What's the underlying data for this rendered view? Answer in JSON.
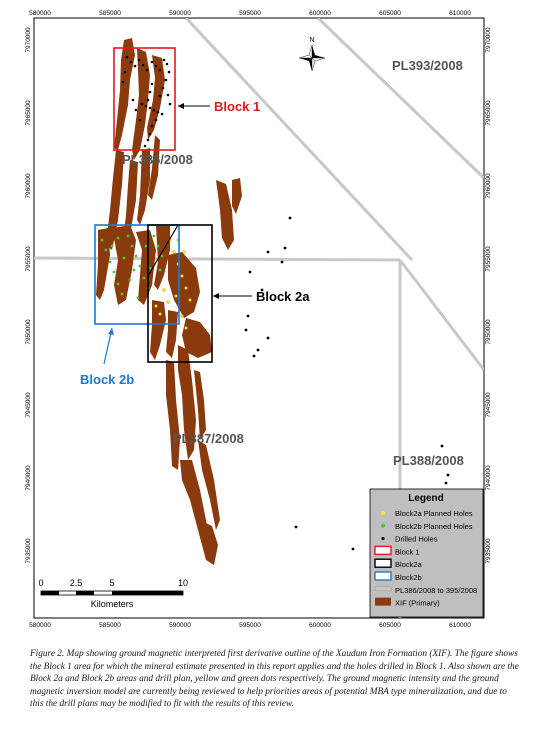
{
  "map": {
    "x_ticks": [
      "580000",
      "585000",
      "590000",
      "595000",
      "600000",
      "605000",
      "610000"
    ],
    "y_ticks": [
      "7970000",
      "7965000",
      "7960000",
      "7955000",
      "7950000",
      "7945000",
      "7940000",
      "7935000"
    ],
    "north_label": "N",
    "licence_labels": [
      "PL393/2008",
      "PL386/2008",
      "PL387/2008",
      "PL388/2008"
    ],
    "block_labels": {
      "block1": "Block 1",
      "block2a": "Block 2a",
      "block2b": "Block 2b"
    },
    "scale_bar": {
      "ticks": [
        "0",
        "2.5",
        "5",
        "10"
      ],
      "unit": "Kilometers"
    },
    "legend": {
      "title": "Legend",
      "items": [
        {
          "label": "Block2a Planned Holes",
          "symbol": "yellow-dot-icon"
        },
        {
          "label": "Block2b Planned Holes",
          "symbol": "green-dot-icon"
        },
        {
          "label": "Drilled Holes",
          "symbol": "black-dot-icon"
        },
        {
          "label": "Block 1",
          "symbol": "red-outline-box-icon"
        },
        {
          "label": "Block2a",
          "symbol": "black-outline-box-icon"
        },
        {
          "label": "Block2b",
          "symbol": "blue-outline-box-icon"
        },
        {
          "label": "PL386/2008 to 395/2008",
          "symbol": "grey-line-icon"
        },
        {
          "label": "XIF (Primary)",
          "symbol": "brown-fill-icon"
        }
      ]
    },
    "colors": {
      "xif": "#8b3a0e",
      "block1": "#e31a1c",
      "block2a": "#000000",
      "block2b": "#1f78d4",
      "licence_lines": "#c8c8c8",
      "planned_2a": "#f5e23a",
      "planned_2b": "#39d12b",
      "drilled": "#000000"
    }
  },
  "caption": {
    "figure_label": "Figure 2.",
    "text": "Map showing ground magnetic interpreted first derivative outline of the Xaudum Iron Formation (XIF). The figure shows the Block 1 area for which the mineral estimate presented in this report applies and the holes drilled in Block 1. Also shown are the Block 2a and Block 2b areas and drill plan, yellow and green dots respectively. The ground magnetic intensity and the ground magnetic inversion model are currently being reviewed to help priorities areas of potential MBA type mineralization, and due to this the drill plans may be modified to fit with the results of this review."
  }
}
